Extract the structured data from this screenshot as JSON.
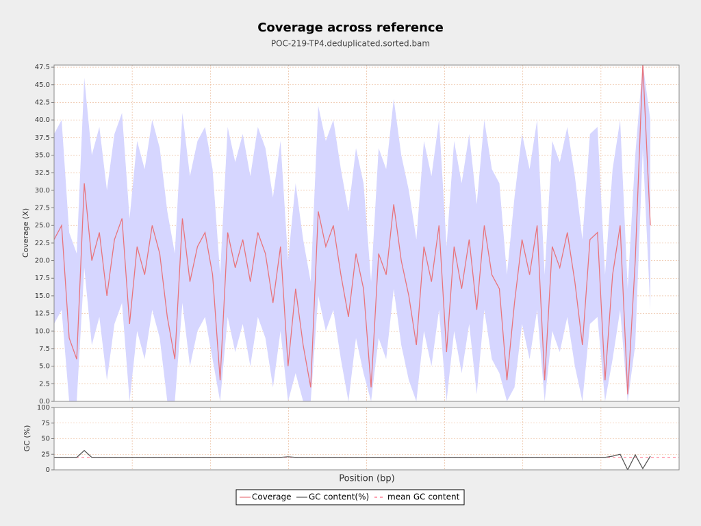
{
  "chart_data": [
    {
      "type": "line",
      "title": "Coverage across reference",
      "subtitle": "POC-219-TP4.deduplicated.sorted.bam",
      "y_label": "Coverage (X)",
      "ylim": [
        0,
        47.8
      ],
      "yticks": [
        {
          "value": 0,
          "label": "0.0"
        },
        2.5,
        {
          "value": 5,
          "label": "5.0"
        },
        7.5,
        {
          "value": 10,
          "label": "10.0"
        },
        12.5,
        {
          "value": 15,
          "label": "15.0"
        },
        17.5,
        {
          "value": 20,
          "label": "20.0"
        },
        22.5,
        {
          "value": 25,
          "label": "25.0"
        },
        27.5,
        {
          "value": 30,
          "label": "30.0"
        },
        32.5,
        {
          "value": 35,
          "label": "35.0"
        },
        37.5,
        {
          "value": 40,
          "label": "40.0"
        },
        42.5,
        {
          "value": 45,
          "label": "45.0"
        },
        47.5
      ],
      "grid": true,
      "series": [
        {
          "name": "Coverage",
          "color": "#e8747c",
          "values": [
            23,
            25,
            9,
            6,
            31,
            20,
            24,
            15,
            23,
            26,
            11,
            22,
            18,
            25,
            21,
            12,
            6,
            26,
            17,
            22,
            24,
            18,
            3,
            24,
            19,
            23,
            17,
            24,
            21,
            14,
            22,
            5,
            16,
            8,
            2,
            27,
            22,
            25,
            18,
            12,
            21,
            16,
            2,
            21,
            18,
            28,
            20,
            15,
            8,
            22,
            17,
            25,
            7,
            22,
            16,
            23,
            13,
            25,
            18,
            16,
            3,
            14,
            23,
            18,
            25,
            3,
            22,
            19,
            24,
            17,
            8,
            23,
            24,
            3,
            18,
            25,
            1,
            20,
            48,
            25
          ]
        }
      ],
      "band": {
        "color": "#d6d6ff",
        "upper": [
          38,
          40,
          24,
          21,
          46,
          35,
          39,
          30,
          38,
          41,
          26,
          37,
          33,
          40,
          36,
          27,
          21,
          41,
          32,
          37,
          39,
          33,
          18,
          39,
          34,
          38,
          32,
          39,
          36,
          29,
          37,
          20,
          31,
          23,
          17,
          42,
          37,
          40,
          33,
          27,
          36,
          31,
          17,
          36,
          33,
          43,
          35,
          30,
          23,
          37,
          32,
          40,
          22,
          37,
          31,
          38,
          28,
          40,
          33,
          31,
          18,
          29,
          38,
          33,
          40,
          18,
          37,
          34,
          39,
          32,
          23,
          38,
          39,
          18,
          33,
          40,
          16,
          35,
          48,
          40
        ],
        "lower": [
          11,
          13,
          0,
          0,
          19,
          8,
          12,
          3,
          11,
          14,
          0,
          10,
          6,
          13,
          9,
          0,
          0,
          14,
          5,
          10,
          12,
          6,
          0,
          12,
          7,
          11,
          5,
          12,
          9,
          2,
          10,
          0,
          4,
          0,
          0,
          15,
          10,
          13,
          6,
          0,
          9,
          4,
          0,
          9,
          6,
          16,
          8,
          3,
          0,
          10,
          5,
          13,
          0,
          10,
          4,
          11,
          1,
          13,
          6,
          4,
          0,
          2,
          11,
          6,
          13,
          0,
          10,
          7,
          12,
          5,
          0,
          11,
          12,
          0,
          6,
          13,
          0,
          8,
          36,
          13
        ]
      }
    },
    {
      "type": "line",
      "y_label": "GC (%)",
      "x_label": "Position (bp)",
      "ylim": [
        0,
        100
      ],
      "yticks": [
        0,
        25,
        50,
        75,
        100
      ],
      "grid": true,
      "series": [
        {
          "name": "GC content(%)",
          "color": "#555555",
          "values": [
            20,
            20,
            20,
            20,
            31,
            20,
            20,
            20,
            20,
            20,
            20,
            20,
            20,
            20,
            20,
            20,
            20,
            20,
            20,
            20,
            20,
            20,
            20,
            20,
            20,
            20,
            20,
            20,
            20,
            20,
            20,
            21,
            20,
            20,
            20,
            20,
            20,
            20,
            20,
            20,
            20,
            20,
            20,
            20,
            20,
            20,
            20,
            20,
            20,
            20,
            20,
            20,
            20,
            20,
            20,
            20,
            20,
            20,
            20,
            20,
            20,
            20,
            20,
            20,
            20,
            20,
            20,
            20,
            20,
            20,
            20,
            20,
            20,
            20,
            22,
            25,
            0,
            24,
            2,
            22
          ]
        }
      ],
      "mean_gc": {
        "name": "mean GC content",
        "color": "#ff6680",
        "value": 20
      }
    }
  ]
}
